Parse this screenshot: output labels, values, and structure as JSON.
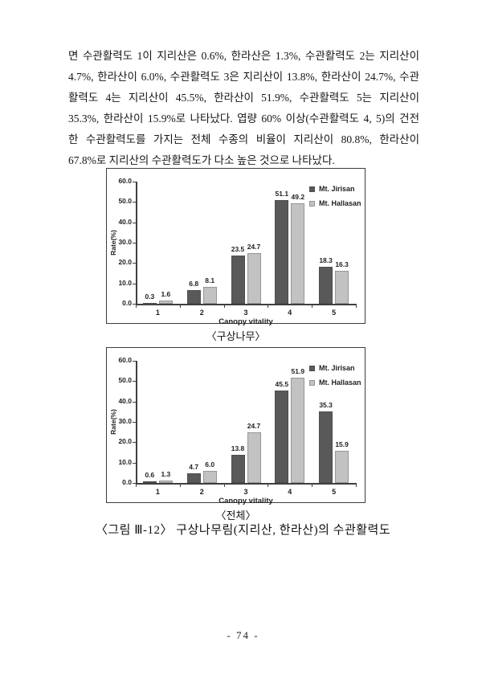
{
  "page": {
    "paragraph_lines": [
      "면 수관활력도 1이 지리산은 0.6%, 한라산은 1.3%, 수관활력도 2는 지리산이",
      "4.7%, 한라산이 6.0%, 수관활력도 3은 지리산이 13.8%, 한라산이 24.7%, 수관",
      "활력도 4는 지리산이 45.5%, 한라산이 51.9%, 수관활력도 5는 지리산이",
      "35.3%, 한라산이 15.9%로 나타났다. 엽량 60% 이상(수관활력도 4, 5)의 건전",
      "한 수관활력도를 가지는 전체 수종의 비율이 지리산이 80.8%, 한라산이",
      "67.8%로 지리산의 수관활력도가 다소 높은 것으로 나타났다."
    ],
    "figure_caption": "〈그림 Ⅲ-12〉 구상나무림(지리산, 한라산)의 수관활력도",
    "page_number": "- 74 -"
  },
  "chart_data": [
    {
      "type": "bar",
      "caption": "〈구상나무〉",
      "categories": [
        "1",
        "2",
        "3",
        "4",
        "5"
      ],
      "series": [
        {
          "name": "Mt. Jirisan",
          "color": "#595959",
          "values": [
            0.3,
            6.8,
            23.5,
            51.1,
            18.3
          ]
        },
        {
          "name": "Mt. Hallasan",
          "color": "#c2c2c2",
          "values": [
            1.6,
            8.1,
            24.7,
            49.2,
            16.3
          ]
        }
      ],
      "xlabel": "Canopy vitality",
      "ylabel": "Rate(%)",
      "ylim": [
        0,
        60
      ],
      "ytick_step": 10,
      "ytick_labels": [
        "0.0",
        "10.0",
        "20.0",
        "30.0",
        "40.0",
        "50.0",
        "60.0"
      ],
      "legend_position": "top-right",
      "grid": false
    },
    {
      "type": "bar",
      "caption": "〈전체〉",
      "categories": [
        "1",
        "2",
        "3",
        "4",
        "5"
      ],
      "series": [
        {
          "name": "Mt. Jirisan",
          "color": "#595959",
          "values": [
            0.6,
            4.7,
            13.8,
            45.5,
            35.3
          ]
        },
        {
          "name": "Mt. Hallasan",
          "color": "#c2c2c2",
          "values": [
            1.3,
            6.0,
            24.7,
            51.9,
            15.9
          ]
        }
      ],
      "xlabel": "Canopy vitality",
      "ylabel": "Rate(%)",
      "ylim": [
        0,
        60
      ],
      "ytick_step": 10,
      "ytick_labels": [
        "0.0",
        "10.0",
        "20.0",
        "30.0",
        "40.0",
        "50.0",
        "60.0"
      ],
      "legend_position": "top-right",
      "grid": false
    }
  ]
}
